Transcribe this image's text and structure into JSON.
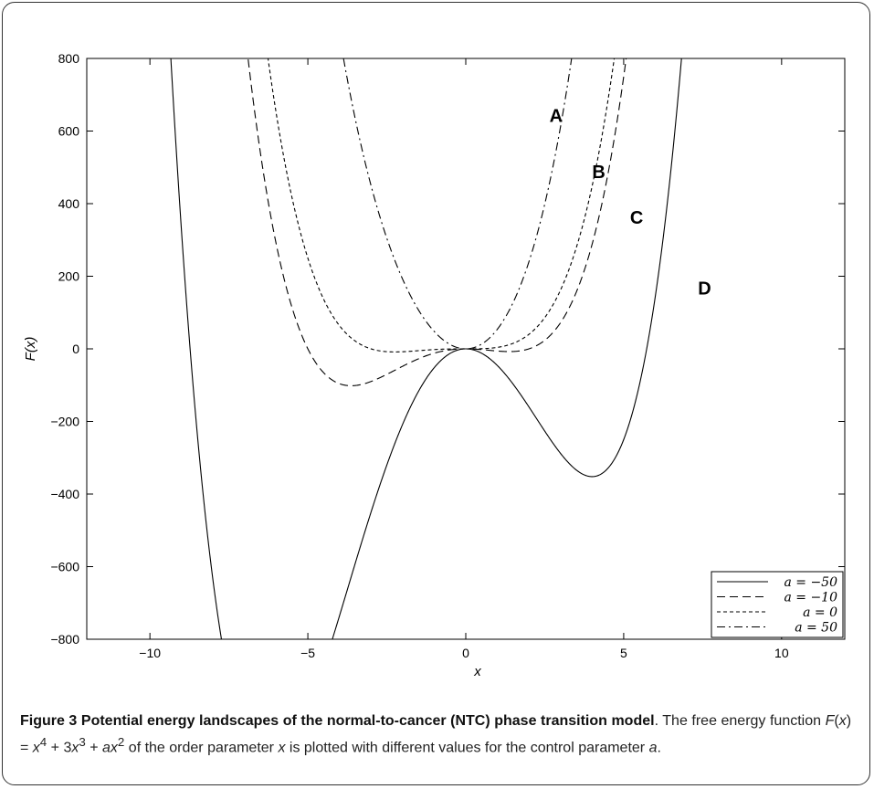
{
  "chart_data": {
    "type": "line",
    "xlabel": "x",
    "ylabel": "F(x)",
    "xlim": [
      -12,
      12
    ],
    "ylim": [
      -800,
      800
    ],
    "xticks": [
      -10,
      -5,
      0,
      5,
      10
    ],
    "yticks": [
      -800,
      -600,
      -400,
      -200,
      0,
      200,
      400,
      600,
      800
    ],
    "xtick_labels": [
      "−10",
      "−5",
      "0",
      "5",
      "10"
    ],
    "ytick_labels": [
      "−800",
      "−600",
      "−400",
      "−200",
      "0",
      "200",
      "400",
      "600",
      "800"
    ],
    "function": "F(x) = x^4 + 3x^3 + a x^2",
    "grid": false,
    "legend_position": "bottom-right",
    "series": [
      {
        "name": "a = −50",
        "a": -50,
        "style": "solid",
        "label": "D",
        "label_at": [
          7.35,
          150
        ]
      },
      {
        "name": "a = −10",
        "a": -10,
        "style": "dashed",
        "label": "C",
        "label_at": [
          5.2,
          345
        ]
      },
      {
        "name": "a = 0",
        "a": 0,
        "style": "dotted",
        "label": "B",
        "label_at": [
          4.0,
          470
        ]
      },
      {
        "name": "a = 50",
        "a": 50,
        "style": "dashdot",
        "label": "A",
        "label_at": [
          2.65,
          625
        ]
      }
    ]
  },
  "caption": {
    "figure_label": "Figure 3",
    "title": "Potential energy landscapes of the normal-to-cancer (NTC) phase transition model",
    "text_1": ". The free energy function ",
    "func_name": "F",
    "func_arg": "x",
    "func_eq": ") = ",
    "t_x4": "x",
    "sup4": "4",
    "plus1": " + 3",
    "t_x3": "x",
    "sup3": "3",
    "plus2": " + ",
    "t_ax": "ax",
    "sup2": "2",
    "text_2": " of the order parameter ",
    "var_x": "x",
    "text_3": " is plotted with different values for the control parameter ",
    "var_a": "a",
    "text_4": "."
  }
}
